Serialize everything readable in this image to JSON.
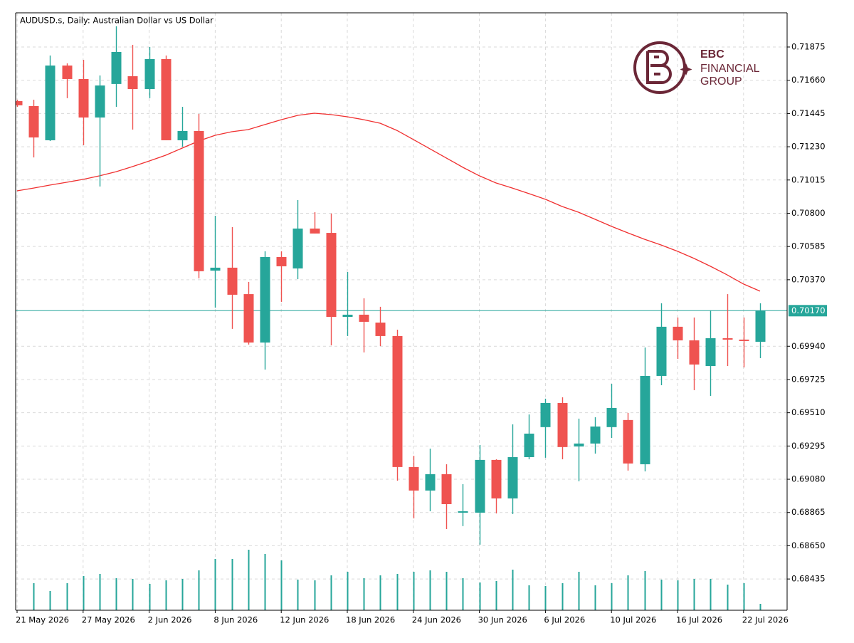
{
  "chart_data": {
    "type": "candlestick",
    "title": "AUDUSD.s, Daily:  Australian Dollar vs US Dollar",
    "categories": [
      "21 May 2026",
      null,
      null,
      null,
      "27 May 2026",
      null,
      null,
      null,
      "2 Jun 2026",
      null,
      null,
      null,
      "8 Jun 2026",
      null,
      null,
      null,
      "12 Jun 2026",
      null,
      null,
      null,
      "18 Jun 2026",
      null,
      null,
      null,
      "24 Jun 2026",
      null,
      null,
      null,
      "30 Jun 2026",
      null,
      null,
      null,
      "6 Jul 2026",
      null,
      null,
      null,
      "10 Jul 2026",
      null,
      null,
      null,
      "16 Jul 2026",
      null,
      null,
      null,
      "22 Jul 2026",
      null
    ],
    "open": [
      0.71525,
      0.71493,
      0.71272,
      0.71755,
      0.71668,
      0.71419,
      0.71636,
      0.71686,
      0.71603,
      0.71797,
      0.71272,
      0.71332,
      0.70429,
      0.70448,
      0.70277,
      0.69964,
      0.70517,
      0.70443,
      0.70701,
      0.70673,
      0.7013,
      0.70144,
      0.70093,
      0.70006,
      0.69159,
      0.69007,
      0.69113,
      0.68864,
      0.68864,
      0.69205,
      0.68956,
      0.69223,
      0.69417,
      0.69573,
      0.69292,
      0.69311,
      0.69417,
      0.69463,
      0.69177,
      0.69748,
      0.70066,
      0.69978,
      0.69812,
      0.69992,
      0.69983,
      0.69969
    ],
    "high": [
      0.71534,
      0.71534,
      0.7182,
      0.71769,
      0.71792,
      0.71691,
      0.72009,
      0.71889,
      0.71875,
      0.7182,
      0.71488,
      0.71442,
      0.70784,
      0.7071,
      0.70356,
      0.70554,
      0.70554,
      0.70885,
      0.70807,
      0.70798,
      0.7042,
      0.7025,
      0.70195,
      0.70047,
      0.69232,
      0.69278,
      0.69177,
      0.69048,
      0.69301,
      0.69209,
      0.69435,
      0.69499,
      0.69601,
      0.6961,
      0.69472,
      0.69481,
      0.69697,
      0.69509,
      0.69932,
      0.70218,
      0.70126,
      0.70126,
      0.70172,
      0.70277,
      0.70126,
      0.70218
    ],
    "low": [
      0.71488,
      0.71161,
      0.71267,
      0.71544,
      0.7124,
      0.70973,
      0.71488,
      0.71341,
      0.71544,
      0.71272,
      0.7123,
      0.70379,
      0.7019,
      0.70052,
      0.69951,
      0.69789,
      0.70227,
      0.70374,
      0.70669,
      0.69946,
      0.70006,
      0.699,
      0.69941,
      0.69071,
      0.68827,
      0.68873,
      0.68758,
      0.68777,
      0.68657,
      0.68859,
      0.68855,
      0.69209,
      0.69219,
      0.69209,
      0.69067,
      0.69246,
      0.69347,
      0.69136,
      0.69131,
      0.69688,
      0.69858,
      0.69656,
      0.69619,
      0.69812,
      0.69803,
      0.69863
    ],
    "close": [
      0.71498,
      0.7129,
      0.71755,
      0.71668,
      0.71419,
      0.71626,
      0.71843,
      0.71603,
      0.71797,
      0.71272,
      0.71332,
      0.70425,
      0.70448,
      0.70273,
      0.69964,
      0.70517,
      0.70457,
      0.70701,
      0.70669,
      0.7013,
      0.70144,
      0.70098,
      0.70006,
      0.69159,
      0.69007,
      0.69113,
      0.68919,
      0.68873,
      0.69205,
      0.68956,
      0.69223,
      0.69375,
      0.69573,
      0.69288,
      0.69311,
      0.69421,
      0.69541,
      0.69182,
      0.69748,
      0.70066,
      0.69978,
      0.69822,
      0.69992,
      0.69983,
      0.69974,
      0.7017
    ],
    "up_color": "#26a69a",
    "down_color": "#ef5350",
    "moving_average": {
      "color": "#f03030",
      "values": [
        0.70945,
        0.70963,
        0.70982,
        0.71,
        0.71019,
        0.71042,
        0.71069,
        0.71102,
        0.71138,
        0.71175,
        0.71221,
        0.71267,
        0.71304,
        0.71327,
        0.71341,
        0.71373,
        0.71405,
        0.71433,
        0.71447,
        0.71438,
        0.71424,
        0.71405,
        0.71382,
        0.71336,
        0.71277,
        0.71217,
        0.71157,
        0.71097,
        0.71042,
        0.70996,
        0.70963,
        0.70927,
        0.7089,
        0.70844,
        0.70807,
        0.70761,
        0.70715,
        0.70673,
        0.70632,
        0.70595,
        0.70554,
        0.70508,
        0.70457,
        0.70402,
        0.70342,
        0.70296
      ]
    },
    "volume": {
      "color": "#26a69a",
      "values": [
        null,
        38,
        27,
        38,
        48,
        51,
        45,
        44,
        37,
        42,
        44,
        56,
        72,
        72,
        85,
        79,
        70,
        43,
        42,
        49,
        54,
        45,
        49,
        51,
        54,
        56,
        54,
        45,
        39,
        41,
        57,
        35,
        34,
        38,
        54,
        35,
        38,
        49,
        55,
        43,
        42,
        44,
        44,
        36,
        38,
        9
      ]
    },
    "y2lim": [
      0,
      100
    ],
    "last_price": {
      "value": 0.7017,
      "label": "0.70170"
    },
    "last_price_color": "#26a69a",
    "ylim": [
      0.68233,
      0.72096
    ],
    "yticks": [
      {
        "value": 0.71875,
        "label": "0.71875"
      },
      {
        "value": 0.7166,
        "label": "0.71660"
      },
      {
        "value": 0.71445,
        "label": "0.71445"
      },
      {
        "value": 0.7123,
        "label": "0.71230"
      },
      {
        "value": 0.71015,
        "label": "0.71015"
      },
      {
        "value": 0.708,
        "label": "0.70800"
      },
      {
        "value": 0.70585,
        "label": "0.70585"
      },
      {
        "value": 0.7037,
        "label": "0.70370"
      },
      {
        "value": 0.6994,
        "label": "0.69940"
      },
      {
        "value": 0.69725,
        "label": "0.69725"
      },
      {
        "value": 0.6951,
        "label": "0.69510"
      },
      {
        "value": 0.69295,
        "label": "0.69295"
      },
      {
        "value": 0.6908,
        "label": "0.69080"
      },
      {
        "value": 0.68865,
        "label": "0.68865"
      },
      {
        "value": 0.6865,
        "label": "0.68650"
      },
      {
        "value": 0.68435,
        "label": "0.68435"
      }
    ],
    "grid": true
  },
  "logo": {
    "line1": "EBC",
    "line2": "FINANCIAL",
    "line3": "GROUP"
  }
}
